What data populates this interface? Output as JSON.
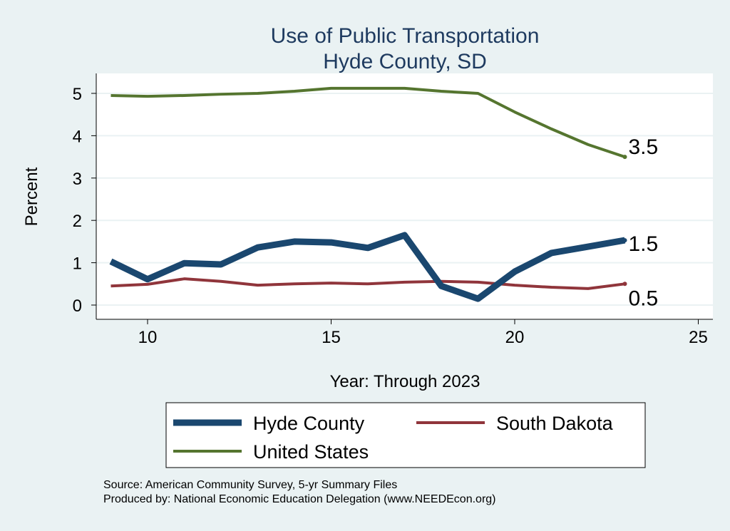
{
  "chart_data": {
    "type": "line",
    "title": "Use of Public Transportation",
    "subtitle": "Hyde County, SD",
    "xlabel": "Year: Through 2023",
    "ylabel": "Percent",
    "xlim": [
      8.6,
      25.4
    ],
    "ylim": [
      -0.3,
      5.5
    ],
    "xticks": [
      10,
      15,
      20,
      25
    ],
    "yticks": [
      0,
      1,
      2,
      3,
      4,
      5
    ],
    "grid": true,
    "legend_position": "bottom",
    "x": [
      9,
      10,
      11,
      12,
      13,
      14,
      15,
      16,
      17,
      18,
      19,
      20,
      21,
      22,
      23
    ],
    "series": [
      {
        "name": "Hyde County",
        "color": "#1a476f",
        "width": 9,
        "end_label": "1.5",
        "values": [
          1.03,
          0.61,
          0.99,
          0.96,
          1.36,
          1.5,
          1.48,
          1.35,
          1.65,
          0.45,
          0.15,
          0.79,
          1.23,
          1.38,
          1.53
        ]
      },
      {
        "name": "South Dakota",
        "color": "#90353b",
        "width": 4,
        "end_label": "0.5",
        "values": [
          0.45,
          0.49,
          0.62,
          0.56,
          0.47,
          0.5,
          0.52,
          0.5,
          0.54,
          0.56,
          0.54,
          0.47,
          0.42,
          0.39,
          0.5
        ]
      },
      {
        "name": "United States",
        "color": "#55752f",
        "width": 4,
        "end_label": "3.5",
        "values": [
          4.95,
          4.93,
          4.95,
          4.98,
          5.0,
          5.05,
          5.12,
          5.12,
          5.12,
          5.05,
          5.0,
          4.56,
          4.16,
          3.79,
          3.5
        ]
      }
    ]
  },
  "notes": {
    "source": "Source: American Community Survey, 5-yr Summary Files",
    "produced": "Produced by: National Economic Education Delegation (www.NEEDEcon.org)"
  }
}
